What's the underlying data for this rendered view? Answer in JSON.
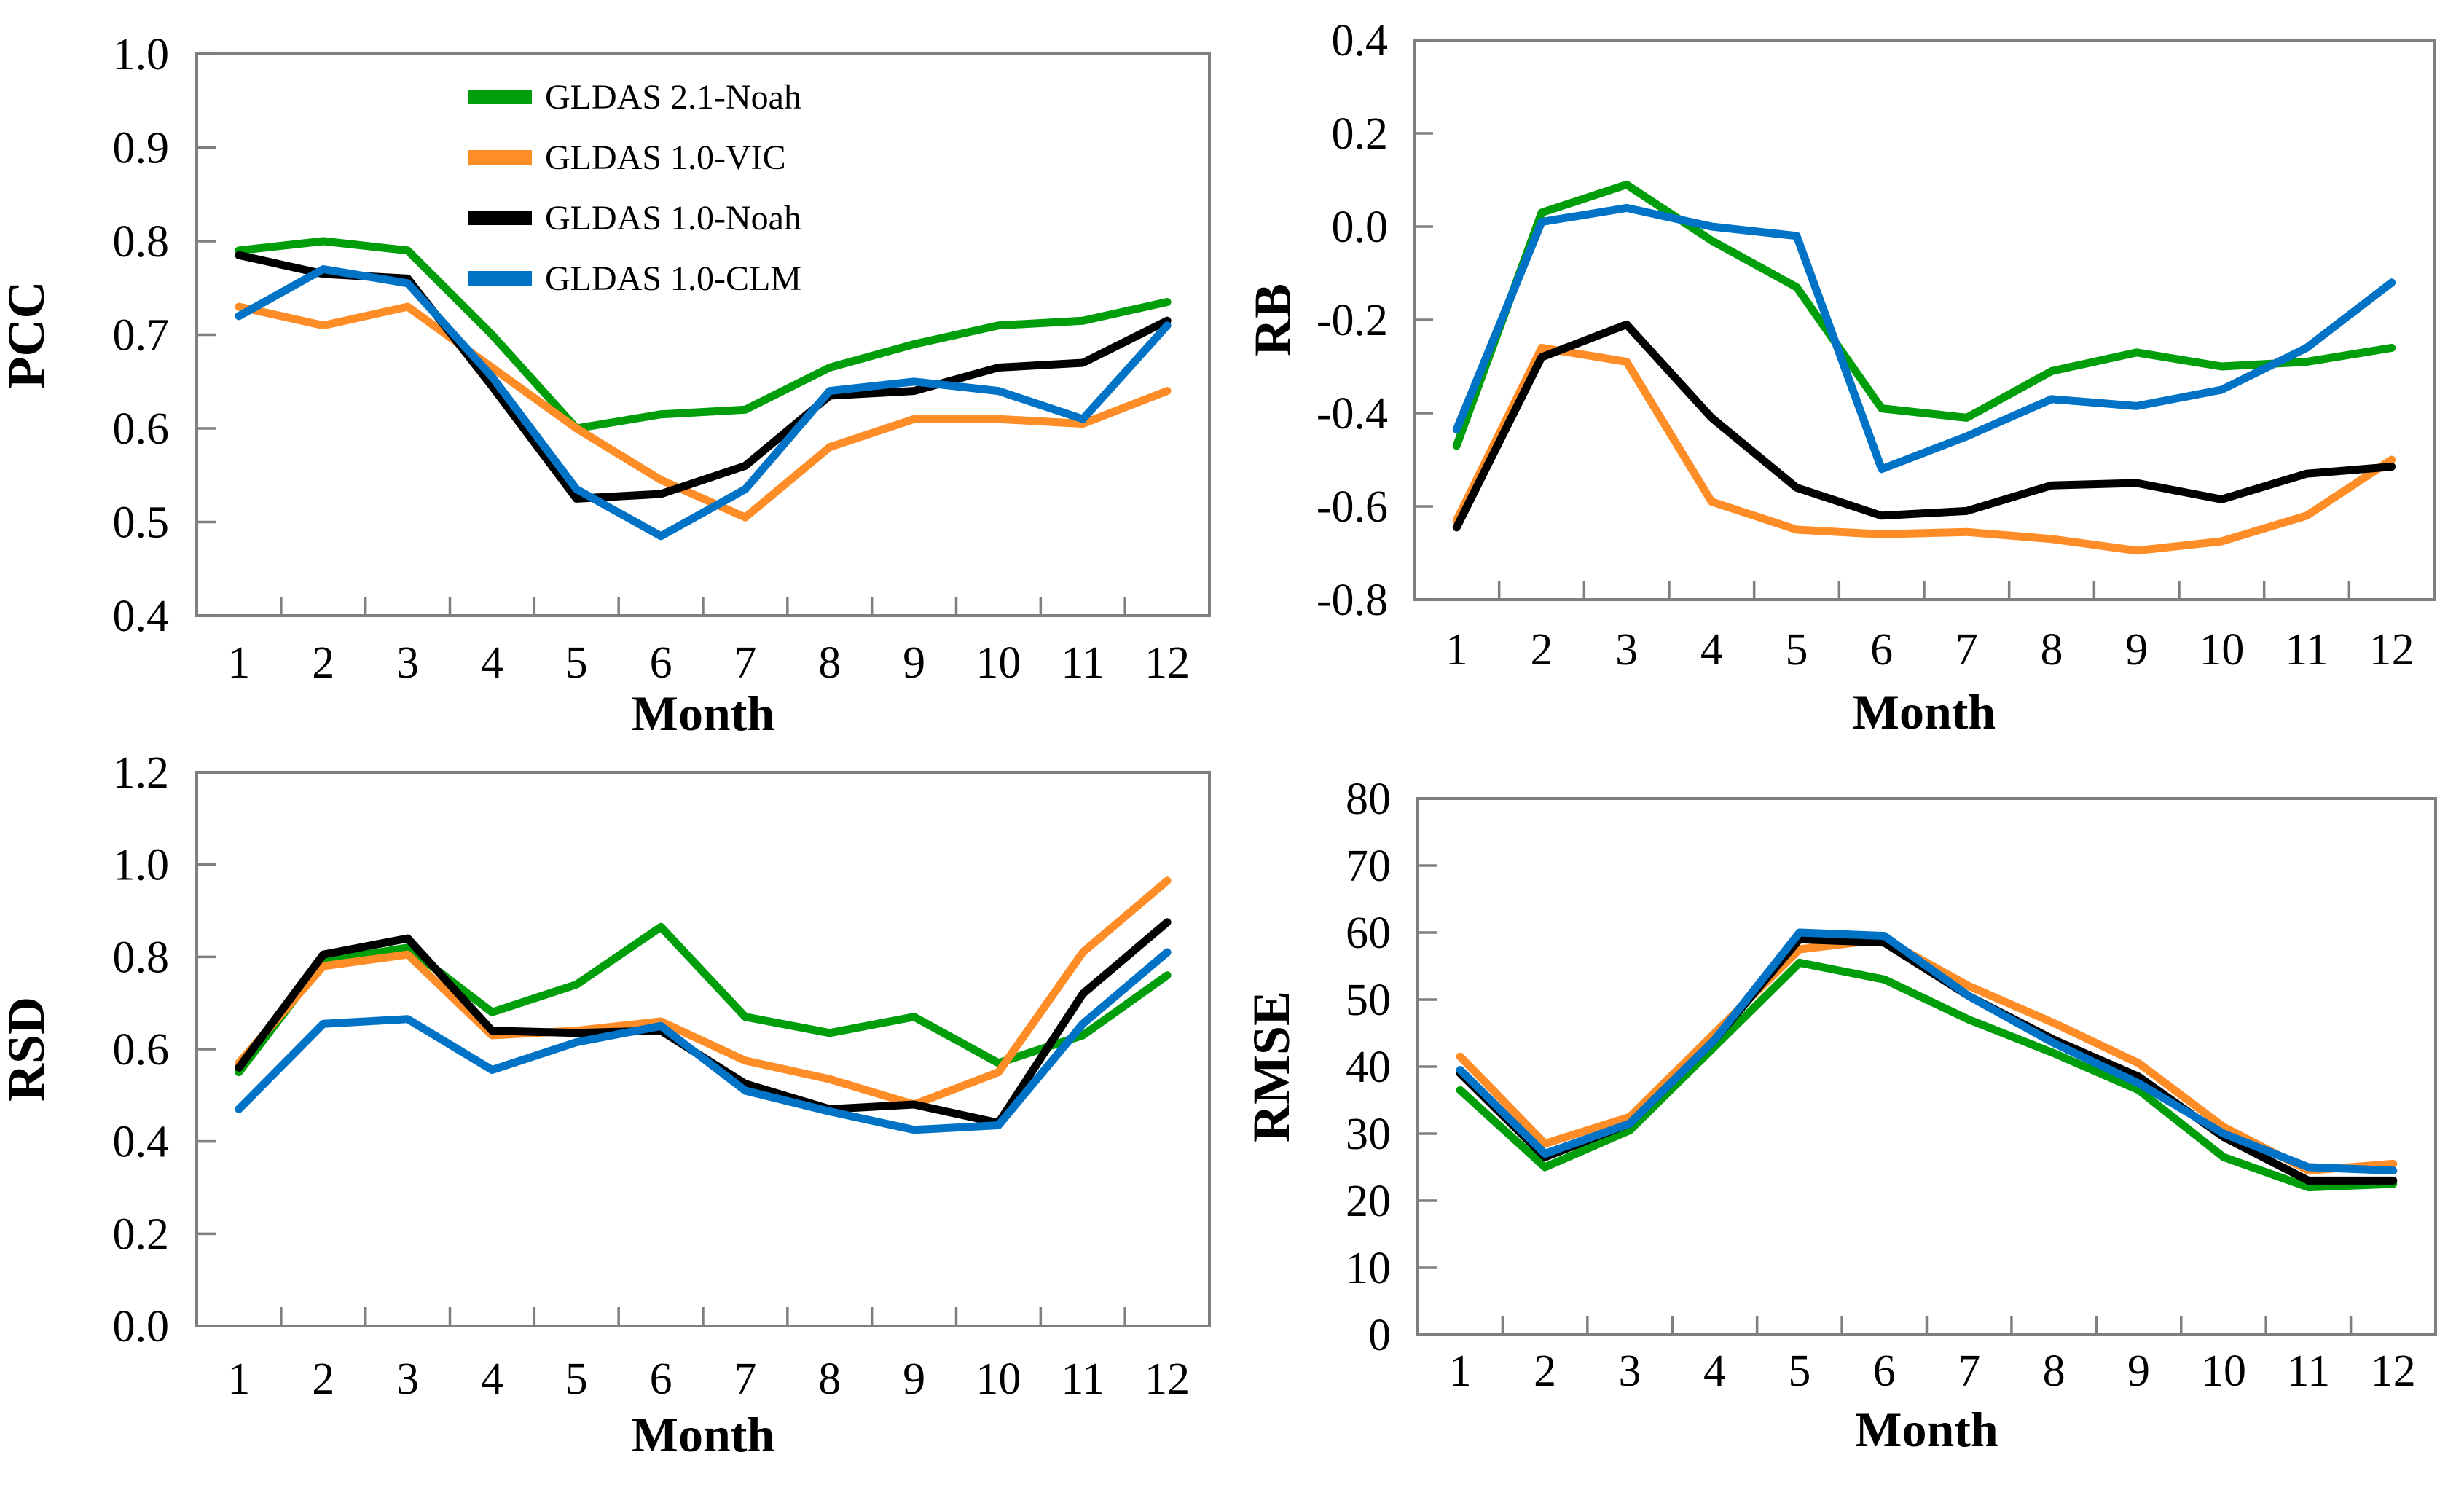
{
  "axis_style": {
    "line_color": "#7f7f7f",
    "tick_color": "#7f7f7f",
    "text_color": "#000000",
    "background": "#ffffff"
  },
  "series_colors": {
    "gldas21_noah": "#009E0A",
    "gldas10_vic": "#FE8D27",
    "gldas10_noah": "#000000",
    "gldas10_clm": "#0073C6"
  },
  "legend": {
    "items": [
      {
        "label": "GLDAS 2.1-Noah",
        "color": "#009E0A"
      },
      {
        "label": "GLDAS 1.0-VIC",
        "color": "#FE8D27"
      },
      {
        "label": "GLDAS 1.0-Noah",
        "color": "#000000"
      },
      {
        "label": "GLDAS 1.0-CLM",
        "color": "#0073C6"
      }
    ]
  },
  "x_axis": {
    "title": "Month",
    "categories": [
      "1",
      "2",
      "3",
      "4",
      "5",
      "6",
      "7",
      "8",
      "9",
      "10",
      "11",
      "12"
    ]
  },
  "chart_data": [
    {
      "id": "pcc",
      "type": "line",
      "title": "",
      "xlabel": "Month",
      "ylabel": "PCC",
      "x": [
        1,
        2,
        3,
        4,
        5,
        6,
        7,
        8,
        9,
        10,
        11,
        12
      ],
      "ylim": [
        0.4,
        1.0
      ],
      "ytick_step": 0.1,
      "ytick_labels": [
        "1.0",
        "0.9",
        "0.8",
        "0.7",
        "0.6",
        "0.5",
        "0.4"
      ],
      "grid": false,
      "legend_visible": true,
      "legend_position": "upper-center-inside",
      "series": [
        {
          "name": "GLDAS 2.1-Noah",
          "color": "#009E0A",
          "values": [
            0.79,
            0.8,
            0.79,
            0.7,
            0.6,
            0.615,
            0.62,
            0.665,
            0.69,
            0.71,
            0.715,
            0.735
          ]
        },
        {
          "name": "GLDAS 1.0-VIC",
          "color": "#FE8D27",
          "values": [
            0.73,
            0.71,
            0.73,
            0.665,
            0.6,
            0.545,
            0.505,
            0.58,
            0.61,
            0.61,
            0.605,
            0.64
          ]
        },
        {
          "name": "GLDAS 1.0-Noah",
          "color": "#000000",
          "values": [
            0.785,
            0.765,
            0.76,
            0.645,
            0.525,
            0.53,
            0.56,
            0.635,
            0.64,
            0.665,
            0.67,
            0.715
          ]
        },
        {
          "name": "GLDAS 1.0-CLM",
          "color": "#0073C6",
          "values": [
            0.72,
            0.77,
            0.755,
            0.655,
            0.535,
            0.485,
            0.535,
            0.64,
            0.65,
            0.64,
            0.61,
            0.71
          ]
        }
      ]
    },
    {
      "id": "rb",
      "type": "line",
      "title": "",
      "xlabel": "Month",
      "ylabel": "RB",
      "x": [
        1,
        2,
        3,
        4,
        5,
        6,
        7,
        8,
        9,
        10,
        11,
        12
      ],
      "ylim": [
        -0.8,
        0.4
      ],
      "ytick_step": 0.2,
      "ytick_labels": [
        "0.4",
        "0.2",
        "0.0",
        "-0.2",
        "-0.4",
        "-0.6",
        "-0.8"
      ],
      "grid": false,
      "legend_visible": false,
      "series": [
        {
          "name": "GLDAS 2.1-Noah",
          "color": "#009E0A",
          "values": [
            -0.47,
            0.03,
            0.09,
            -0.03,
            -0.13,
            -0.39,
            -0.41,
            -0.31,
            -0.27,
            -0.3,
            -0.29,
            -0.26
          ]
        },
        {
          "name": "GLDAS 1.0-VIC",
          "color": "#FE8D27",
          "values": [
            -0.63,
            -0.26,
            -0.29,
            -0.59,
            -0.65,
            -0.66,
            -0.655,
            -0.67,
            -0.695,
            -0.675,
            -0.62,
            -0.5
          ]
        },
        {
          "name": "GLDAS 1.0-Noah",
          "color": "#000000",
          "values": [
            -0.645,
            -0.28,
            -0.21,
            -0.41,
            -0.56,
            -0.62,
            -0.61,
            -0.555,
            -0.55,
            -0.585,
            -0.53,
            -0.515
          ]
        },
        {
          "name": "GLDAS 1.0-CLM",
          "color": "#0073C6",
          "values": [
            -0.435,
            0.01,
            0.04,
            0.0,
            -0.02,
            -0.52,
            -0.45,
            -0.37,
            -0.385,
            -0.35,
            -0.26,
            -0.12
          ]
        }
      ]
    },
    {
      "id": "rsd",
      "type": "line",
      "title": "",
      "xlabel": "Month",
      "ylabel": "RSD",
      "x": [
        1,
        2,
        3,
        4,
        5,
        6,
        7,
        8,
        9,
        10,
        11,
        12
      ],
      "ylim": [
        0.0,
        1.2
      ],
      "ytick_step": 0.2,
      "ytick_labels": [
        "1.2",
        "1.0",
        "0.8",
        "0.6",
        "0.4",
        "0.2",
        "0.0"
      ],
      "grid": false,
      "legend_visible": false,
      "series": [
        {
          "name": "GLDAS 2.1-Noah",
          "color": "#009E0A",
          "values": [
            0.55,
            0.79,
            0.82,
            0.68,
            0.74,
            0.865,
            0.67,
            0.635,
            0.67,
            0.57,
            0.63,
            0.76
          ]
        },
        {
          "name": "GLDAS 1.0-VIC",
          "color": "#FE8D27",
          "values": [
            0.57,
            0.78,
            0.805,
            0.63,
            0.64,
            0.66,
            0.575,
            0.535,
            0.48,
            0.55,
            0.81,
            0.965
          ]
        },
        {
          "name": "GLDAS 1.0-Noah",
          "color": "#000000",
          "values": [
            0.56,
            0.805,
            0.84,
            0.64,
            0.635,
            0.64,
            0.525,
            0.47,
            0.48,
            0.44,
            0.72,
            0.875
          ]
        },
        {
          "name": "GLDAS 1.0-CLM",
          "color": "#0073C6",
          "values": [
            0.47,
            0.655,
            0.665,
            0.555,
            0.615,
            0.65,
            0.51,
            0.465,
            0.425,
            0.435,
            0.655,
            0.81
          ]
        }
      ]
    },
    {
      "id": "rmse",
      "type": "line",
      "title": "",
      "xlabel": "Month",
      "ylabel": "RMSE",
      "x": [
        1,
        2,
        3,
        4,
        5,
        6,
        7,
        8,
        9,
        10,
        11,
        12
      ],
      "ylim": [
        0,
        80
      ],
      "ytick_step": 10,
      "ytick_labels": [
        "80",
        "70",
        "60",
        "50",
        "40",
        "30",
        "20",
        "10",
        "0"
      ],
      "grid": false,
      "legend_visible": false,
      "series": [
        {
          "name": "GLDAS 2.1-Noah",
          "color": "#009E0A",
          "values": [
            36.5,
            25,
            30.5,
            43,
            55.5,
            53,
            47,
            42,
            36.5,
            26.5,
            22,
            22.5
          ]
        },
        {
          "name": "GLDAS 1.0-VIC",
          "color": "#FE8D27",
          "values": [
            41.5,
            28.5,
            32.5,
            45,
            57.5,
            59,
            52,
            46.5,
            40.5,
            31,
            24.5,
            25.5
          ]
        },
        {
          "name": "GLDAS 1.0-Noah",
          "color": "#000000",
          "values": [
            39,
            26.5,
            31.5,
            44,
            59,
            58.5,
            50.5,
            44,
            38.5,
            29.5,
            23,
            23
          ]
        },
        {
          "name": "GLDAS 1.0-CLM",
          "color": "#0073C6",
          "values": [
            39.5,
            27,
            31.5,
            44,
            60,
            59.5,
            50.5,
            43.5,
            37.5,
            30,
            25,
            24.5
          ]
        }
      ]
    }
  ]
}
